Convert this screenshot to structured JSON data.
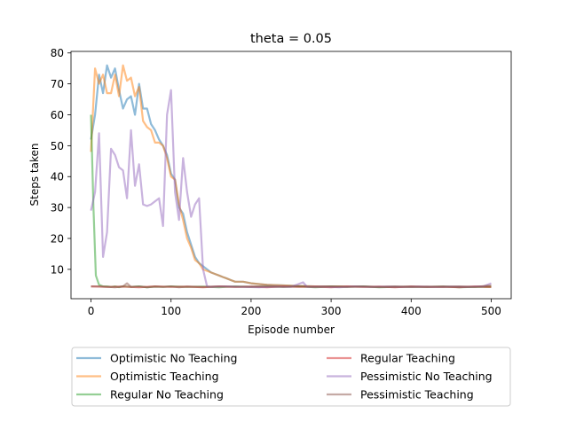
{
  "chart_data": {
    "type": "line",
    "title": "theta = 0.05",
    "xlabel": "Episode number",
    "ylabel": "Steps taken",
    "xlim": [
      -25,
      525
    ],
    "ylim": [
      0.5,
      80.5
    ],
    "xticks": [
      0,
      100,
      200,
      300,
      400,
      500
    ],
    "yticks": [
      10,
      20,
      30,
      40,
      50,
      60,
      70,
      80
    ],
    "grid": false,
    "legend": "below-plot",
    "series": [
      {
        "name": "Optimistic No Teaching",
        "color": "#1f77b4",
        "points": [
          [
            0,
            52
          ],
          [
            5,
            60
          ],
          [
            10,
            73
          ],
          [
            15,
            67
          ],
          [
            20,
            76
          ],
          [
            25,
            72
          ],
          [
            30,
            75
          ],
          [
            35,
            68
          ],
          [
            40,
            62
          ],
          [
            45,
            65
          ],
          [
            50,
            66
          ],
          [
            55,
            60
          ],
          [
            60,
            70
          ],
          [
            65,
            62
          ],
          [
            70,
            62
          ],
          [
            75,
            57
          ],
          [
            80,
            55
          ],
          [
            85,
            52
          ],
          [
            90,
            50
          ],
          [
            95,
            47
          ],
          [
            100,
            41
          ],
          [
            105,
            39
          ],
          [
            110,
            30
          ],
          [
            115,
            28
          ],
          [
            120,
            22
          ],
          [
            125,
            18
          ],
          [
            130,
            14
          ],
          [
            135,
            12
          ],
          [
            140,
            11
          ],
          [
            145,
            10
          ],
          [
            150,
            9
          ],
          [
            155,
            8.5
          ],
          [
            160,
            8
          ],
          [
            165,
            7.5
          ],
          [
            170,
            7
          ],
          [
            175,
            6.5
          ],
          [
            180,
            6
          ],
          [
            190,
            6
          ],
          [
            200,
            5.5
          ],
          [
            220,
            5
          ],
          [
            240,
            4.8
          ],
          [
            260,
            4.6
          ],
          [
            280,
            4.5
          ],
          [
            300,
            4.5
          ],
          [
            320,
            4.4
          ],
          [
            340,
            4.4
          ],
          [
            360,
            4.3
          ],
          [
            380,
            4.3
          ],
          [
            400,
            4.3
          ],
          [
            420,
            4.3
          ],
          [
            440,
            4.3
          ],
          [
            460,
            4.3
          ],
          [
            480,
            4.3
          ],
          [
            500,
            4.3
          ]
        ]
      },
      {
        "name": "Optimistic Teaching",
        "color": "#ff7f0e",
        "points": [
          [
            0,
            48
          ],
          [
            5,
            75
          ],
          [
            10,
            70
          ],
          [
            15,
            73
          ],
          [
            20,
            67
          ],
          [
            25,
            67
          ],
          [
            30,
            73
          ],
          [
            35,
            66
          ],
          [
            40,
            76
          ],
          [
            45,
            71
          ],
          [
            50,
            72
          ],
          [
            55,
            66
          ],
          [
            60,
            69
          ],
          [
            65,
            58
          ],
          [
            70,
            56
          ],
          [
            75,
            55
          ],
          [
            80,
            51
          ],
          [
            85,
            51
          ],
          [
            90,
            50
          ],
          [
            95,
            46
          ],
          [
            100,
            40
          ],
          [
            105,
            39
          ],
          [
            110,
            31
          ],
          [
            115,
            26
          ],
          [
            120,
            20
          ],
          [
            125,
            17
          ],
          [
            130,
            13
          ],
          [
            135,
            12
          ],
          [
            140,
            10
          ],
          [
            145,
            9.5
          ],
          [
            150,
            9
          ],
          [
            155,
            8.5
          ],
          [
            160,
            8
          ],
          [
            165,
            7.5
          ],
          [
            170,
            7
          ],
          [
            175,
            6.5
          ],
          [
            180,
            6
          ],
          [
            190,
            6
          ],
          [
            200,
            5.5
          ],
          [
            220,
            5
          ],
          [
            240,
            4.8
          ],
          [
            260,
            4.6
          ],
          [
            280,
            4.5
          ],
          [
            300,
            4.5
          ],
          [
            320,
            4.4
          ],
          [
            340,
            4.4
          ],
          [
            360,
            4.3
          ],
          [
            380,
            4.3
          ],
          [
            400,
            4.3
          ],
          [
            420,
            4.3
          ],
          [
            440,
            4.3
          ],
          [
            460,
            4.3
          ],
          [
            480,
            4.3
          ],
          [
            500,
            4.3
          ]
        ]
      },
      {
        "name": "Regular No Teaching",
        "color": "#2ca02c",
        "points": [
          [
            0,
            60
          ],
          [
            3,
            30
          ],
          [
            6,
            8
          ],
          [
            10,
            5
          ],
          [
            15,
            4.5
          ],
          [
            20,
            4.5
          ],
          [
            25,
            4.3
          ],
          [
            30,
            4.5
          ],
          [
            35,
            4.2
          ],
          [
            40,
            4.5
          ],
          [
            50,
            4.3
          ],
          [
            60,
            4.5
          ],
          [
            70,
            4.2
          ],
          [
            80,
            4.4
          ],
          [
            90,
            4.3
          ],
          [
            100,
            4.5
          ],
          [
            120,
            4.3
          ],
          [
            140,
            4.4
          ],
          [
            160,
            4.2
          ],
          [
            180,
            4.5
          ],
          [
            200,
            4.3
          ],
          [
            220,
            4.4
          ],
          [
            240,
            4.3
          ],
          [
            260,
            4.5
          ],
          [
            280,
            4.2
          ],
          [
            300,
            4.4
          ],
          [
            320,
            4.3
          ],
          [
            340,
            4.5
          ],
          [
            360,
            4.2
          ],
          [
            380,
            4.3
          ],
          [
            400,
            4.4
          ],
          [
            420,
            4.3
          ],
          [
            440,
            4.5
          ],
          [
            460,
            4.2
          ],
          [
            480,
            4.3
          ],
          [
            500,
            4.4
          ]
        ]
      },
      {
        "name": "Regular Teaching",
        "color": "#d62728",
        "points": [
          [
            0,
            4.5
          ],
          [
            20,
            4.3
          ],
          [
            40,
            4.4
          ],
          [
            60,
            4.2
          ],
          [
            80,
            4.5
          ],
          [
            100,
            4.3
          ],
          [
            120,
            4.4
          ],
          [
            140,
            4.2
          ],
          [
            160,
            4.5
          ],
          [
            180,
            4.3
          ],
          [
            200,
            4.4
          ],
          [
            220,
            4.2
          ],
          [
            240,
            4.5
          ],
          [
            260,
            4.3
          ],
          [
            280,
            4.4
          ],
          [
            300,
            4.2
          ],
          [
            320,
            4.5
          ],
          [
            340,
            4.3
          ],
          [
            360,
            4.4
          ],
          [
            380,
            4.2
          ],
          [
            400,
            4.5
          ],
          [
            420,
            4.3
          ],
          [
            440,
            4.4
          ],
          [
            460,
            4.2
          ],
          [
            480,
            4.5
          ],
          [
            500,
            4.3
          ]
        ]
      },
      {
        "name": "Pessimistic No Teaching",
        "color": "#9467bd",
        "points": [
          [
            0,
            29
          ],
          [
            5,
            35
          ],
          [
            10,
            54
          ],
          [
            15,
            14
          ],
          [
            20,
            22
          ],
          [
            25,
            49
          ],
          [
            30,
            47
          ],
          [
            35,
            43
          ],
          [
            40,
            42
          ],
          [
            45,
            33
          ],
          [
            50,
            55
          ],
          [
            55,
            37
          ],
          [
            60,
            44
          ],
          [
            65,
            31
          ],
          [
            70,
            30.5
          ],
          [
            75,
            31
          ],
          [
            80,
            32
          ],
          [
            85,
            33
          ],
          [
            90,
            24
          ],
          [
            95,
            60
          ],
          [
            100,
            68
          ],
          [
            105,
            35
          ],
          [
            110,
            26
          ],
          [
            115,
            46
          ],
          [
            120,
            35
          ],
          [
            125,
            27
          ],
          [
            130,
            31
          ],
          [
            135,
            33
          ],
          [
            140,
            10
          ],
          [
            145,
            4.5
          ],
          [
            150,
            4.3
          ],
          [
            170,
            4.5
          ],
          [
            190,
            4.3
          ],
          [
            210,
            4.2
          ],
          [
            230,
            4.4
          ],
          [
            250,
            4.3
          ],
          [
            265,
            5.8
          ],
          [
            270,
            4.3
          ],
          [
            290,
            4.4
          ],
          [
            310,
            4.2
          ],
          [
            330,
            4.5
          ],
          [
            350,
            4.3
          ],
          [
            370,
            4.4
          ],
          [
            390,
            4.3
          ],
          [
            410,
            4.4
          ],
          [
            430,
            4.3
          ],
          [
            450,
            4.4
          ],
          [
            470,
            4.3
          ],
          [
            490,
            4.5
          ],
          [
            500,
            5.5
          ]
        ]
      },
      {
        "name": "Pessimistic Teaching",
        "color": "#8c564b",
        "points": [
          [
            0,
            4.5
          ],
          [
            10,
            4.5
          ],
          [
            20,
            4.3
          ],
          [
            30,
            4.2
          ],
          [
            40,
            4.5
          ],
          [
            45,
            5.5
          ],
          [
            50,
            4.3
          ],
          [
            60,
            4.5
          ],
          [
            70,
            4.2
          ],
          [
            80,
            4.4
          ],
          [
            90,
            4.3
          ],
          [
            100,
            4.5
          ],
          [
            110,
            4.2
          ],
          [
            120,
            4.4
          ],
          [
            140,
            4.3
          ],
          [
            160,
            4.5
          ],
          [
            180,
            4.3
          ],
          [
            200,
            4.4
          ],
          [
            220,
            4.6
          ],
          [
            240,
            4.3
          ],
          [
            260,
            4.5
          ],
          [
            280,
            4.3
          ],
          [
            300,
            4.5
          ],
          [
            320,
            4.3
          ],
          [
            340,
            4.4
          ],
          [
            360,
            4.3
          ],
          [
            380,
            4.5
          ],
          [
            400,
            4.3
          ],
          [
            420,
            4.4
          ],
          [
            440,
            4.3
          ],
          [
            460,
            4.5
          ],
          [
            480,
            4.3
          ],
          [
            500,
            4.8
          ]
        ]
      }
    ]
  }
}
